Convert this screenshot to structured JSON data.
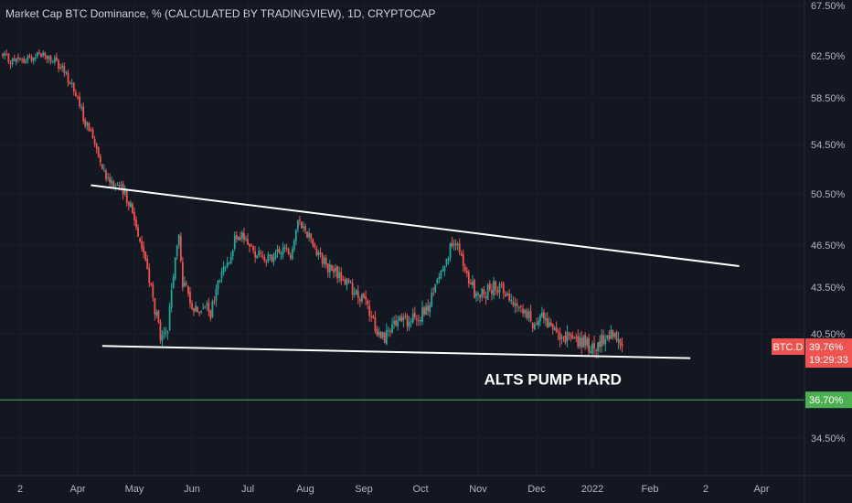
{
  "title": "Market Cap BTC Dominance, % (CALCULATED BY TRADINGVIEW), 1D, CRYPTOCAP",
  "chart_data": {
    "type": "candlestick",
    "title": "Market Cap BTC Dominance, % (CALCULATED BY TRADINGVIEW), 1D, CRYPTOCAP",
    "ylim": [
      32.5,
      67.5
    ],
    "y_ticks": [
      "67.50%",
      "62.50%",
      "58.50%",
      "54.50%",
      "50.50%",
      "46.50%",
      "43.50%",
      "40.50%",
      "34.50%"
    ],
    "x_ticks": [
      "2",
      "Apr",
      "May",
      "Jun",
      "Jul",
      "Aug",
      "Sep",
      "Oct",
      "Nov",
      "Dec",
      "2022",
      "Feb",
      "2",
      "Apr"
    ],
    "close_path": [
      [
        "2021-02-21",
        62.4
      ],
      [
        "2021-02-26",
        62.0
      ],
      [
        "2021-03-04",
        62.0
      ],
      [
        "2021-03-12",
        62.8
      ],
      [
        "2021-03-18",
        62.2
      ],
      [
        "2021-03-24",
        61.2
      ],
      [
        "2021-03-29",
        59.8
      ],
      [
        "2021-04-04",
        56.8
      ],
      [
        "2021-04-10",
        54.8
      ],
      [
        "2021-04-16",
        52.0
      ],
      [
        "2021-04-22",
        51.2
      ],
      [
        "2021-04-28",
        50.0
      ],
      [
        "2021-05-04",
        47.0
      ],
      [
        "2021-05-08",
        44.8
      ],
      [
        "2021-05-12",
        42.0
      ],
      [
        "2021-05-16",
        40.0
      ],
      [
        "2021-05-19",
        40.6
      ],
      [
        "2021-05-22",
        44.5
      ],
      [
        "2021-05-25",
        47.2
      ],
      [
        "2021-05-27",
        43.8
      ],
      [
        "2021-05-30",
        43.0
      ],
      [
        "2021-06-03",
        42.0
      ],
      [
        "2021-06-07",
        42.5
      ],
      [
        "2021-06-11",
        41.6
      ],
      [
        "2021-06-15",
        43.8
      ],
      [
        "2021-06-19",
        45.0
      ],
      [
        "2021-06-24",
        46.8
      ],
      [
        "2021-06-29",
        47.2
      ],
      [
        "2021-07-04",
        46.0
      ],
      [
        "2021-07-09",
        45.8
      ],
      [
        "2021-07-14",
        45.3
      ],
      [
        "2021-07-19",
        46.2
      ],
      [
        "2021-07-24",
        46.0
      ],
      [
        "2021-07-29",
        48.5
      ],
      [
        "2021-08-02",
        47.5
      ],
      [
        "2021-08-07",
        46.2
      ],
      [
        "2021-08-12",
        45.0
      ],
      [
        "2021-08-17",
        44.5
      ],
      [
        "2021-08-22",
        44.0
      ],
      [
        "2021-08-27",
        43.2
      ],
      [
        "2021-09-01",
        42.6
      ],
      [
        "2021-09-06",
        41.2
      ],
      [
        "2021-09-10",
        40.3
      ],
      [
        "2021-09-15",
        40.6
      ],
      [
        "2021-09-20",
        41.4
      ],
      [
        "2021-09-25",
        41.2
      ],
      [
        "2021-09-30",
        41.6
      ],
      [
        "2021-10-05",
        42.0
      ],
      [
        "2021-10-10",
        44.0
      ],
      [
        "2021-10-15",
        45.8
      ],
      [
        "2021-10-20",
        46.8
      ],
      [
        "2021-10-25",
        44.5
      ],
      [
        "2021-10-30",
        43.2
      ],
      [
        "2021-11-04",
        43.0
      ],
      [
        "2021-11-09",
        43.6
      ],
      [
        "2021-11-14",
        43.4
      ],
      [
        "2021-11-19",
        42.6
      ],
      [
        "2021-11-24",
        42.0
      ],
      [
        "2021-11-29",
        41.2
      ],
      [
        "2021-12-04",
        41.8
      ],
      [
        "2021-12-09",
        40.6
      ],
      [
        "2021-12-14",
        40.6
      ],
      [
        "2021-12-19",
        40.2
      ],
      [
        "2021-12-24",
        40.0
      ],
      [
        "2021-12-29",
        39.8
      ],
      [
        "2022-01-03",
        39.6
      ],
      [
        "2022-01-07",
        40.2
      ],
      [
        "2022-01-11",
        40.6
      ],
      [
        "2022-01-15",
        39.9
      ],
      [
        "2022-01-17",
        39.76
      ]
    ],
    "trendlines": [
      {
        "points": [
          [
            "2021-04-08",
            51.2
          ],
          [
            "2022-03-20",
            45.0
          ]
        ],
        "color": "#ffffff"
      },
      {
        "points": [
          [
            "2021-04-14",
            39.8
          ],
          [
            "2022-02-22",
            39.1
          ]
        ],
        "color": "#ffffff"
      },
      {
        "points": [
          [
            "2021-02-15",
            36.7
          ],
          [
            "2022-04-15",
            36.7
          ]
        ],
        "color": "#4caf50"
      }
    ],
    "annotations": [
      {
        "text": "ALTS PUMP HARD",
        "x": "2021-12-10",
        "y": 37.9
      }
    ],
    "price_tags": [
      {
        "symbol": "BTC.D",
        "value": "39.76%",
        "countdown": "19:29:33",
        "y": 39.76,
        "color": "#ef5350"
      },
      {
        "value": "36.70%",
        "y": 36.7,
        "color": "#4caf50"
      }
    ],
    "colors": {
      "background": "#131722",
      "up": "#26a69a",
      "down": "#ef5350"
    }
  }
}
